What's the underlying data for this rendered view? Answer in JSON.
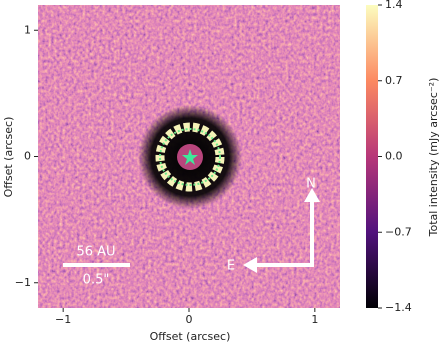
{
  "chart_data": {
    "type": "image",
    "xlabel": "Offset (arcsec)",
    "ylabel": "Offset (arcsec)",
    "xlim": [
      -1.2,
      1.2
    ],
    "ylim": [
      -1.2,
      1.2
    ],
    "xticks": [
      {
        "value": -1,
        "label": "−1"
      },
      0,
      1
    ],
    "yticks": [
      {
        "value": -1,
        "label": "−1"
      },
      0,
      1
    ],
    "colorbar": {
      "label": "Total intensity (mJy arcsec⁻²)",
      "lim": [
        -1.4,
        1.4
      ],
      "ticks": [
        {
          "value": -1.4,
          "label": "−1.4"
        },
        {
          "value": -0.7,
          "label": "−0.7"
        },
        {
          "value": 0,
          "label": "0.0"
        },
        0.7,
        1.4
      ]
    },
    "annotations": {
      "scale_au": "56 AU",
      "scale_arcsec": "0.5\"",
      "north": "N",
      "east": "E"
    }
  }
}
